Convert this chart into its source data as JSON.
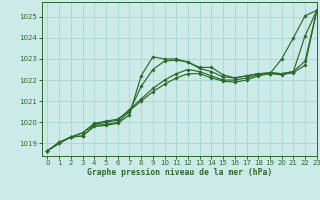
{
  "title": "Graphe pression niveau de la mer (hPa)",
  "background_color": "#cceae7",
  "grid_color": "#add8d5",
  "line_color": "#2d6a2d",
  "xlim": [
    -0.5,
    23
  ],
  "ylim": [
    1018.4,
    1025.7
  ],
  "yticks": [
    1019,
    1020,
    1021,
    1022,
    1023,
    1024,
    1025
  ],
  "xticks": [
    0,
    1,
    2,
    3,
    4,
    5,
    6,
    7,
    8,
    9,
    10,
    11,
    12,
    13,
    14,
    15,
    16,
    17,
    18,
    19,
    20,
    21,
    22,
    23
  ],
  "series": [
    {
      "x": [
        0,
        1,
        2,
        3,
        4,
        5,
        6,
        7,
        8,
        9,
        10,
        11,
        12,
        13,
        14,
        15,
        16,
        17,
        18,
        19,
        20,
        21,
        22,
        23
      ],
      "y": [
        1018.65,
        1019.0,
        1019.3,
        1019.35,
        1019.8,
        1019.85,
        1019.95,
        1020.35,
        1022.2,
        1023.1,
        1023.0,
        1023.0,
        1022.85,
        1022.6,
        1022.6,
        1022.25,
        1022.1,
        1022.2,
        1022.3,
        1022.3,
        1023.0,
        1024.0,
        1025.05,
        1025.3
      ]
    },
    {
      "x": [
        0,
        1,
        2,
        3,
        4,
        5,
        6,
        7,
        8,
        9,
        10,
        11,
        12,
        13,
        14,
        15,
        16,
        17,
        18,
        19,
        20,
        21,
        22,
        23
      ],
      "y": [
        1018.65,
        1019.0,
        1019.3,
        1019.35,
        1019.85,
        1019.9,
        1020.0,
        1020.5,
        1021.7,
        1022.5,
        1022.9,
        1022.95,
        1022.85,
        1022.55,
        1022.4,
        1022.15,
        1022.1,
        1022.2,
        1022.3,
        1022.35,
        1022.3,
        1022.4,
        1024.1,
        1025.3
      ]
    },
    {
      "x": [
        0,
        1,
        2,
        3,
        4,
        5,
        6,
        7,
        8,
        9,
        10,
        11,
        12,
        13,
        14,
        15,
        16,
        17,
        18,
        19,
        20,
        21,
        22,
        23
      ],
      "y": [
        1018.65,
        1019.05,
        1019.3,
        1019.5,
        1019.9,
        1020.0,
        1020.1,
        1020.6,
        1021.1,
        1021.6,
        1022.0,
        1022.3,
        1022.5,
        1022.4,
        1022.2,
        1022.0,
        1022.0,
        1022.1,
        1022.25,
        1022.35,
        1022.3,
        1022.4,
        1022.9,
        1025.3
      ]
    },
    {
      "x": [
        0,
        1,
        2,
        3,
        4,
        5,
        6,
        7,
        8,
        9,
        10,
        11,
        12,
        13,
        14,
        15,
        16,
        17,
        18,
        19,
        20,
        21,
        22,
        23
      ],
      "y": [
        1018.65,
        1019.05,
        1019.3,
        1019.5,
        1019.95,
        1020.05,
        1020.15,
        1020.55,
        1021.0,
        1021.45,
        1021.8,
        1022.1,
        1022.3,
        1022.3,
        1022.1,
        1021.95,
        1021.9,
        1022.0,
        1022.2,
        1022.3,
        1022.25,
        1022.35,
        1022.7,
        1025.3
      ]
    }
  ]
}
